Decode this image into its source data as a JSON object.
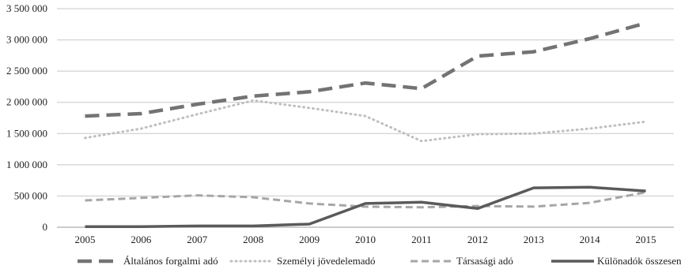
{
  "chart_data": {
    "type": "line",
    "title": "",
    "xlabel": "",
    "ylabel": "",
    "categories": [
      "2005",
      "2006",
      "2007",
      "2008",
      "2009",
      "2010",
      "2011",
      "2012",
      "2013",
      "2014",
      "2015"
    ],
    "ylim": [
      0,
      3500000
    ],
    "y_ticks": [
      0,
      500000,
      1000000,
      1500000,
      2000000,
      2500000,
      3000000,
      3500000
    ],
    "y_tick_labels": [
      "0",
      "500 000",
      "1 000 000",
      "1 500 000",
      "2 000 000",
      "2 500 000",
      "3 000 000",
      "3 500 000"
    ],
    "grid": "horizontal",
    "legend_position": "bottom",
    "series": [
      {
        "name": "Általános forgalmi adó",
        "style": "long-dash",
        "color": "#737373",
        "values": [
          1780000,
          1820000,
          1970000,
          2100000,
          2170000,
          2310000,
          2220000,
          2740000,
          2810000,
          3020000,
          3270000
        ]
      },
      {
        "name": "Személyi jövedelemadó",
        "style": "dotted",
        "color": "#bfbfbf",
        "values": [
          1430000,
          1580000,
          1810000,
          2030000,
          1910000,
          1780000,
          1380000,
          1490000,
          1500000,
          1580000,
          1690000
        ]
      },
      {
        "name": "Társasági adó",
        "style": "dashed",
        "color": "#a6a6a6",
        "values": [
          430000,
          470000,
          510000,
          480000,
          380000,
          330000,
          320000,
          340000,
          330000,
          390000,
          560000
        ]
      },
      {
        "name": "Különadók összesen",
        "style": "solid",
        "color": "#5a5a5a",
        "values": [
          10000,
          10000,
          20000,
          20000,
          50000,
          380000,
          400000,
          300000,
          630000,
          640000,
          580000
        ]
      }
    ]
  }
}
